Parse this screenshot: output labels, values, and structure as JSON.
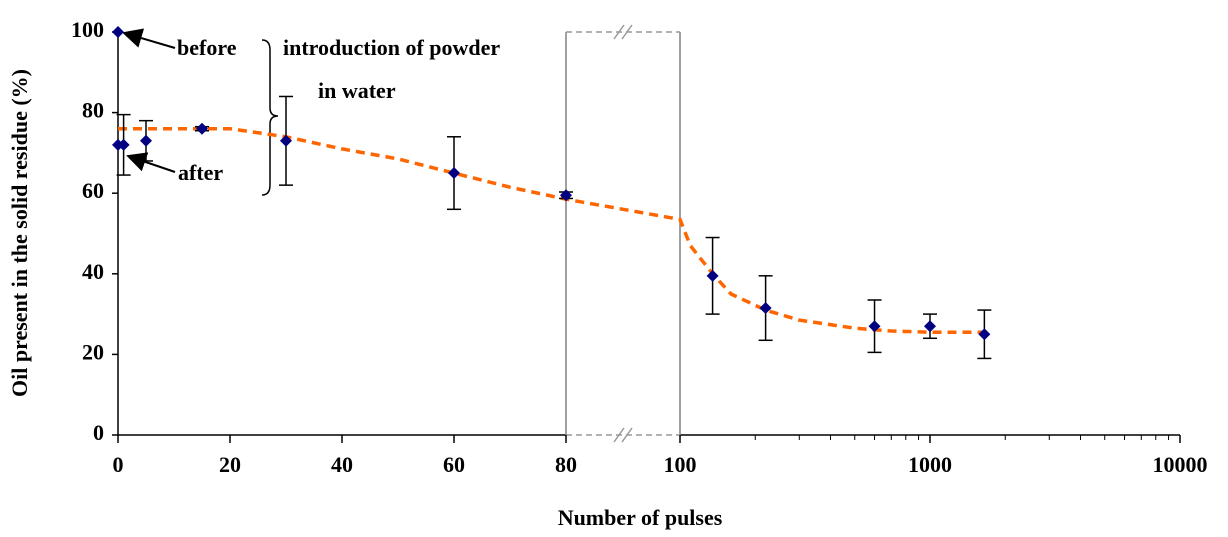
{
  "chart_data": {
    "type": "scatter",
    "xlabel": "Number of pulses",
    "ylabel": "Oil present in the solid residue (%)",
    "xlim": [
      0,
      10000
    ],
    "x_break": [
      80,
      100
    ],
    "x_log_from": 100,
    "ylim": [
      0,
      100
    ],
    "xticks": [
      0,
      20,
      40,
      60,
      80,
      100,
      1000,
      10000
    ],
    "yticks": [
      0,
      20,
      40,
      60,
      80,
      100
    ],
    "series": [
      {
        "color": "#000080",
        "x": [
          0,
          0,
          1,
          5,
          15,
          30,
          60,
          80,
          135,
          220,
          600,
          1000,
          1650
        ],
        "values": [
          100,
          72,
          72,
          73,
          76,
          73,
          65,
          59.5,
          39.5,
          31.5,
          27,
          27,
          25
        ],
        "errors": [
          null,
          null,
          7.5,
          5,
          0.5,
          11,
          9,
          0.8,
          9.5,
          8,
          6.5,
          3,
          6
        ]
      }
    ],
    "trend": {
      "color": "#ff6600",
      "x": [
        0,
        10,
        20,
        30,
        40,
        50,
        60,
        70,
        80,
        90,
        100,
        110,
        135,
        160,
        220,
        300,
        500,
        700,
        1000,
        1650
      ],
      "values": [
        76,
        76,
        76,
        74,
        71,
        68.5,
        65,
        61.5,
        58.5,
        56,
        53.5,
        47,
        40,
        35,
        31,
        28.5,
        26.5,
        25.8,
        25.5,
        25.5
      ]
    },
    "annotations": [
      "before",
      "after",
      "introduction of powder",
      "in water"
    ]
  }
}
